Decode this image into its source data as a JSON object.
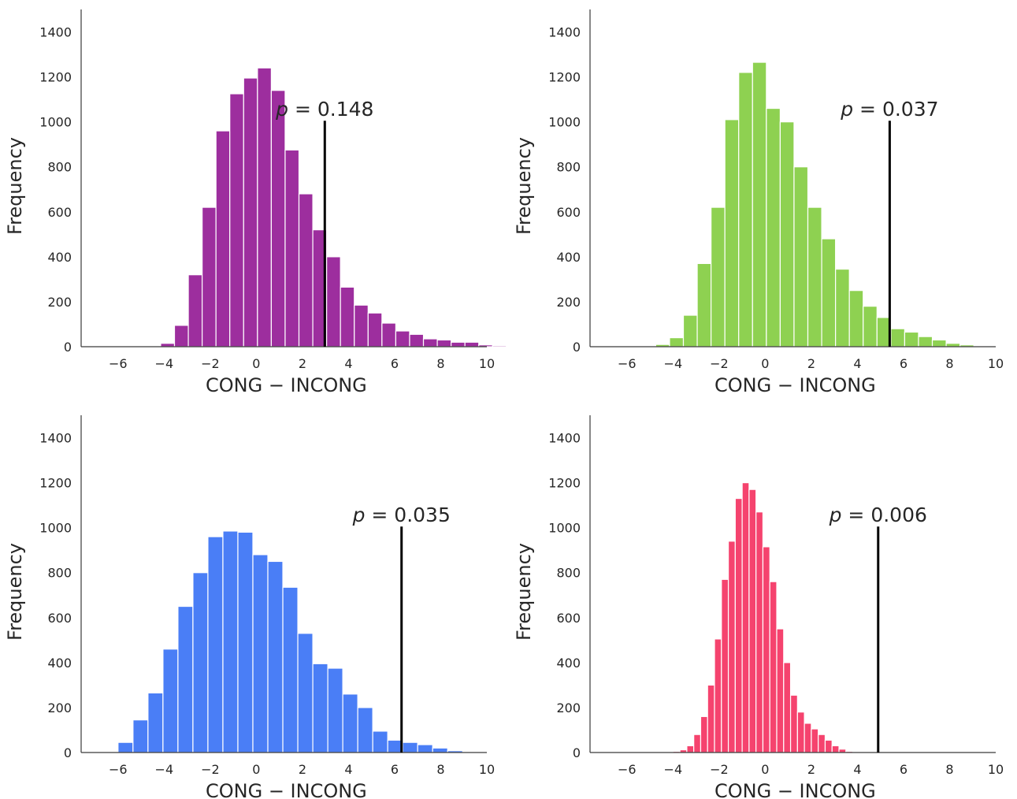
{
  "chart_data": [
    {
      "type": "bar",
      "xlabel": "CONG − INCONG",
      "ylabel": "Frequency",
      "xlim": [
        -7.6,
        10
      ],
      "ylim": [
        0,
        1500
      ],
      "xticks": [
        -6,
        -4,
        -2,
        0,
        2,
        4,
        6,
        8,
        10
      ],
      "xtick_labels": [
        "−6",
        "−4",
        "−2",
        "0",
        "2",
        "4",
        "6",
        "8",
        "10"
      ],
      "yticks": [
        0,
        200,
        400,
        600,
        800,
        1000,
        1200,
        1400
      ],
      "ytick_labels": [
        "0",
        "200",
        "400",
        "600",
        "800",
        "1000",
        "1200",
        "1400"
      ],
      "grid": false,
      "color": "#9d2e9e",
      "bin_start": -5.35,
      "bin_width": 0.6,
      "values": [
        2,
        3,
        15,
        95,
        320,
        620,
        960,
        1125,
        1195,
        1240,
        1140,
        875,
        680,
        520,
        400,
        265,
        185,
        150,
        105,
        70,
        55,
        35,
        30,
        20,
        20,
        8,
        5,
        2
      ],
      "observed_line": {
        "x": 2.97,
        "top": 1005
      },
      "annotation": {
        "italic": "p",
        "text": " = 0.148"
      }
    },
    {
      "type": "bar",
      "xlabel": "CONG − INCONG",
      "ylabel": "Frequency",
      "xlim": [
        -7.6,
        10
      ],
      "ylim": [
        0,
        1500
      ],
      "xticks": [
        -6,
        -4,
        -2,
        0,
        2,
        4,
        6,
        8,
        10
      ],
      "xtick_labels": [
        "−6",
        "−4",
        "−2",
        "0",
        "2",
        "4",
        "6",
        "8",
        "10"
      ],
      "yticks": [
        0,
        200,
        400,
        600,
        800,
        1000,
        1200,
        1400
      ],
      "ytick_labels": [
        "0",
        "200",
        "400",
        "600",
        "800",
        "1000",
        "1200",
        "1400"
      ],
      "grid": false,
      "color": "#8ed151",
      "bin_start": -5.35,
      "bin_width": 0.6,
      "values": [
        2,
        10,
        40,
        140,
        370,
        620,
        1010,
        1220,
        1265,
        1060,
        1000,
        800,
        620,
        480,
        345,
        250,
        180,
        130,
        80,
        65,
        45,
        30,
        15,
        8,
        3,
        1
      ],
      "observed_line": {
        "x": 5.4,
        "top": 1005
      },
      "annotation": {
        "italic": "p",
        "text": " = 0.037"
      }
    },
    {
      "type": "bar",
      "xlabel": "CONG − INCONG",
      "ylabel": "Frequency",
      "xlim": [
        -7.6,
        10
      ],
      "ylim": [
        0,
        1500
      ],
      "xticks": [
        -6,
        -4,
        -2,
        0,
        2,
        4,
        6,
        8,
        10
      ],
      "xtick_labels": [
        "−6",
        "−4",
        "−2",
        "0",
        "2",
        "4",
        "6",
        "8",
        "10"
      ],
      "yticks": [
        0,
        200,
        400,
        600,
        800,
        1000,
        1200,
        1400
      ],
      "ytick_labels": [
        "0",
        "200",
        "400",
        "600",
        "800",
        "1000",
        "1200",
        "1400"
      ],
      "grid": false,
      "color": "#4a7ef6",
      "bin_start": -6.0,
      "bin_width": 0.65,
      "values": [
        45,
        145,
        265,
        460,
        650,
        800,
        960,
        985,
        980,
        880,
        850,
        735,
        530,
        395,
        375,
        260,
        200,
        95,
        55,
        45,
        35,
        20,
        8
      ],
      "observed_line": {
        "x": 6.3,
        "top": 1005
      },
      "annotation": {
        "italic": "p",
        "text": " = 0.035"
      }
    },
    {
      "type": "bar",
      "xlabel": "CONG − INCONG",
      "ylabel": "Frequency",
      "xlim": [
        -7.6,
        10
      ],
      "ylim": [
        0,
        1500
      ],
      "xticks": [
        -6,
        -4,
        -2,
        0,
        2,
        4,
        6,
        8,
        10
      ],
      "xtick_labels": [
        "−6",
        "−4",
        "−2",
        "0",
        "2",
        "4",
        "6",
        "8",
        "10"
      ],
      "yticks": [
        0,
        200,
        400,
        600,
        800,
        1000,
        1200,
        1400
      ],
      "ytick_labels": [
        "0",
        "200",
        "400",
        "600",
        "800",
        "1000",
        "1200",
        "1400"
      ],
      "grid": false,
      "color": "#f5436e",
      "bin_start": -4.3,
      "bin_width": 0.3,
      "values": [
        2,
        5,
        12,
        30,
        80,
        160,
        300,
        505,
        770,
        940,
        1130,
        1200,
        1170,
        1070,
        915,
        760,
        550,
        400,
        255,
        180,
        130,
        105,
        80,
        55,
        30,
        15,
        5,
        3,
        1
      ],
      "observed_line": {
        "x": 4.9,
        "top": 1005
      },
      "annotation": {
        "italic": "p",
        "text": " = 0.006"
      }
    }
  ]
}
